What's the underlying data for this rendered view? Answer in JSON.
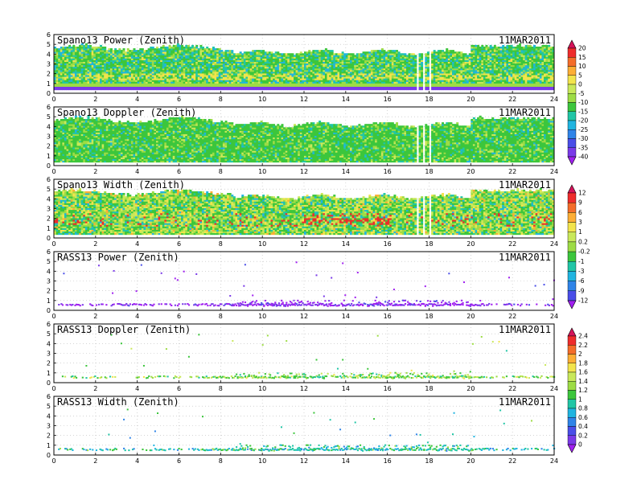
{
  "date": "11MAR2011",
  "chart_data": [
    {
      "type": "heatmap",
      "title": "Spano13 Power (Zenith)",
      "date": "11MAR2011",
      "x_range": [
        0,
        24
      ],
      "y_range": [
        0,
        6
      ],
      "x_ticks": [
        "0",
        "2",
        "4",
        "6",
        "8",
        "10",
        "12",
        "14",
        "16",
        "18",
        "20",
        "22",
        "24"
      ],
      "y_ticks": [
        "0",
        "1",
        "2",
        "3",
        "4",
        "5",
        "6"
      ],
      "colorbar": "power"
    },
    {
      "type": "heatmap",
      "title": "Spano13 Doppler (Zenith)",
      "date": "11MAR2011",
      "x_range": [
        0,
        24
      ],
      "y_range": [
        0,
        6
      ],
      "x_ticks": [
        "0",
        "2",
        "4",
        "6",
        "8",
        "10",
        "12",
        "14",
        "16",
        "18",
        "20",
        "22",
        "24"
      ],
      "y_ticks": [
        "0",
        "1",
        "2",
        "3",
        "4",
        "5",
        "6"
      ],
      "colorbar": "power"
    },
    {
      "type": "heatmap",
      "title": "Spano13 Width (Zenith)",
      "date": "11MAR2011",
      "x_range": [
        0,
        24
      ],
      "y_range": [
        0,
        6
      ],
      "x_ticks": [
        "0",
        "2",
        "4",
        "6",
        "8",
        "10",
        "12",
        "14",
        "16",
        "18",
        "20",
        "22",
        "24"
      ],
      "y_ticks": [
        "0",
        "1",
        "2",
        "3",
        "4",
        "5",
        "6"
      ],
      "colorbar": "width"
    },
    {
      "type": "scatter",
      "title": "RASS13 Power (Zenith)",
      "date": "11MAR2011",
      "x_range": [
        0,
        24
      ],
      "y_range": [
        0,
        6
      ],
      "x_ticks": [
        "0",
        "2",
        "4",
        "6",
        "8",
        "10",
        "12",
        "14",
        "16",
        "18",
        "20",
        "22",
        "24"
      ],
      "y_ticks": [
        "0",
        "1",
        "2",
        "3",
        "4",
        "5",
        "6"
      ],
      "colorbar": "width"
    },
    {
      "type": "scatter",
      "title": "RASS13 Doppler (Zenith)",
      "date": "11MAR2011",
      "x_range": [
        0,
        24
      ],
      "y_range": [
        0,
        6
      ],
      "x_ticks": [
        "0",
        "2",
        "4",
        "6",
        "8",
        "10",
        "12",
        "14",
        "16",
        "18",
        "20",
        "22",
        "24"
      ],
      "y_ticks": [
        "0",
        "1",
        "2",
        "3",
        "4",
        "5",
        "6"
      ],
      "colorbar": "rass"
    },
    {
      "type": "scatter",
      "title": "RASS13 Width (Zenith)",
      "date": "11MAR2011",
      "x_range": [
        0,
        24
      ],
      "y_range": [
        0,
        6
      ],
      "x_ticks": [
        "0",
        "2",
        "4",
        "6",
        "8",
        "10",
        "12",
        "14",
        "16",
        "18",
        "20",
        "22",
        "24"
      ],
      "y_ticks": [
        "0",
        "1",
        "2",
        "3",
        "4",
        "5",
        "6"
      ],
      "colorbar": "rass"
    }
  ],
  "colorbars": {
    "power": {
      "labels": [
        "20",
        "15",
        "10",
        "5",
        "0",
        "-5",
        "-10",
        "-15",
        "-20",
        "-25",
        "-30",
        "-35",
        "-40"
      ],
      "colors": [
        "#d4145a",
        "#ee2c2c",
        "#f46d2a",
        "#fdae35",
        "#f2e44c",
        "#c9e85a",
        "#9ddc45",
        "#3cc63c",
        "#21c6a6",
        "#20b4e0",
        "#2f84e8",
        "#4a4ee8",
        "#7a3ae8",
        "#a020f0"
      ]
    },
    "width": {
      "labels": [
        "12",
        "9",
        "6",
        "3",
        "1",
        "0.2",
        "-0.2",
        "-1",
        "-3",
        "-6",
        "-9",
        "-12"
      ],
      "colors": [
        "#d4145a",
        "#ee2c2c",
        "#f46d2a",
        "#fdae35",
        "#f2e44c",
        "#c9e85a",
        "#9ddc45",
        "#3cc63c",
        "#21c6a6",
        "#20b4e0",
        "#2f84e8",
        "#4a4ee8",
        "#a020f0"
      ]
    },
    "rass": {
      "labels": [
        "2.4",
        "2.2",
        "2",
        "1.8",
        "1.6",
        "1.4",
        "1.2",
        "1",
        "0.8",
        "0.6",
        "0.4",
        "0.2",
        "0"
      ],
      "colors": [
        "#d4145a",
        "#ee2c2c",
        "#f46d2a",
        "#fdae35",
        "#f2e44c",
        "#c9e85a",
        "#9ddc45",
        "#3cc63c",
        "#21c6a6",
        "#20b4e0",
        "#2f84e8",
        "#4a4ee8",
        "#7a3ae8",
        "#a020f0"
      ]
    }
  }
}
